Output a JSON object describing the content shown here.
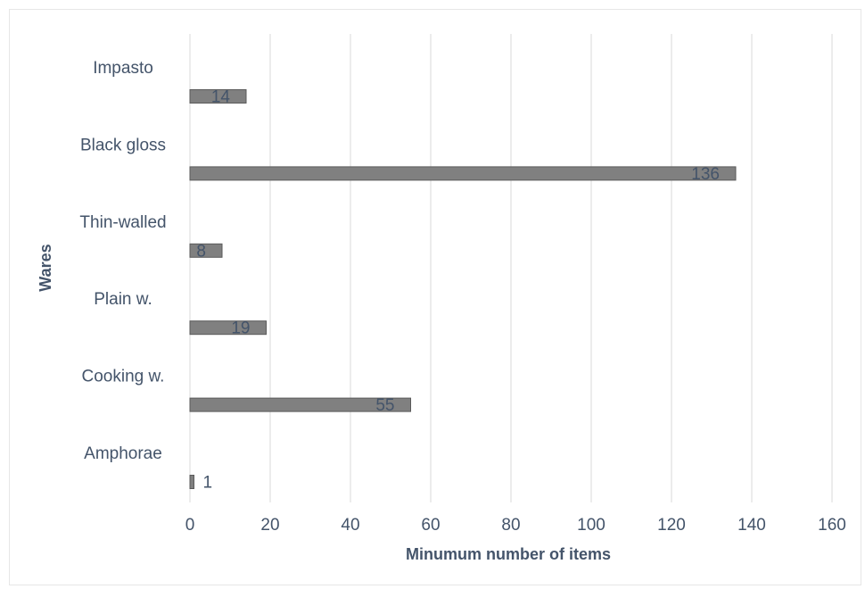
{
  "chart_data": {
    "type": "bar",
    "orientation": "horizontal",
    "categories": [
      "Impasto",
      "Black gloss",
      "Thin-walled",
      "Plain w.",
      "Cooking w.",
      "Amphorae"
    ],
    "values": [
      14,
      136,
      8,
      19,
      55,
      1
    ],
    "xlabel": "Minumum number of items",
    "ylabel": "Wares",
    "xlim": [
      0,
      160
    ],
    "xticks": [
      0,
      20,
      40,
      60,
      80,
      100,
      120,
      140,
      160
    ],
    "grid": true,
    "legend": "none",
    "bar_color": "#808080",
    "bar_edge_color": "#5a5a5a",
    "text_color": "#44546a",
    "grid_color": "#d9d9d9"
  }
}
